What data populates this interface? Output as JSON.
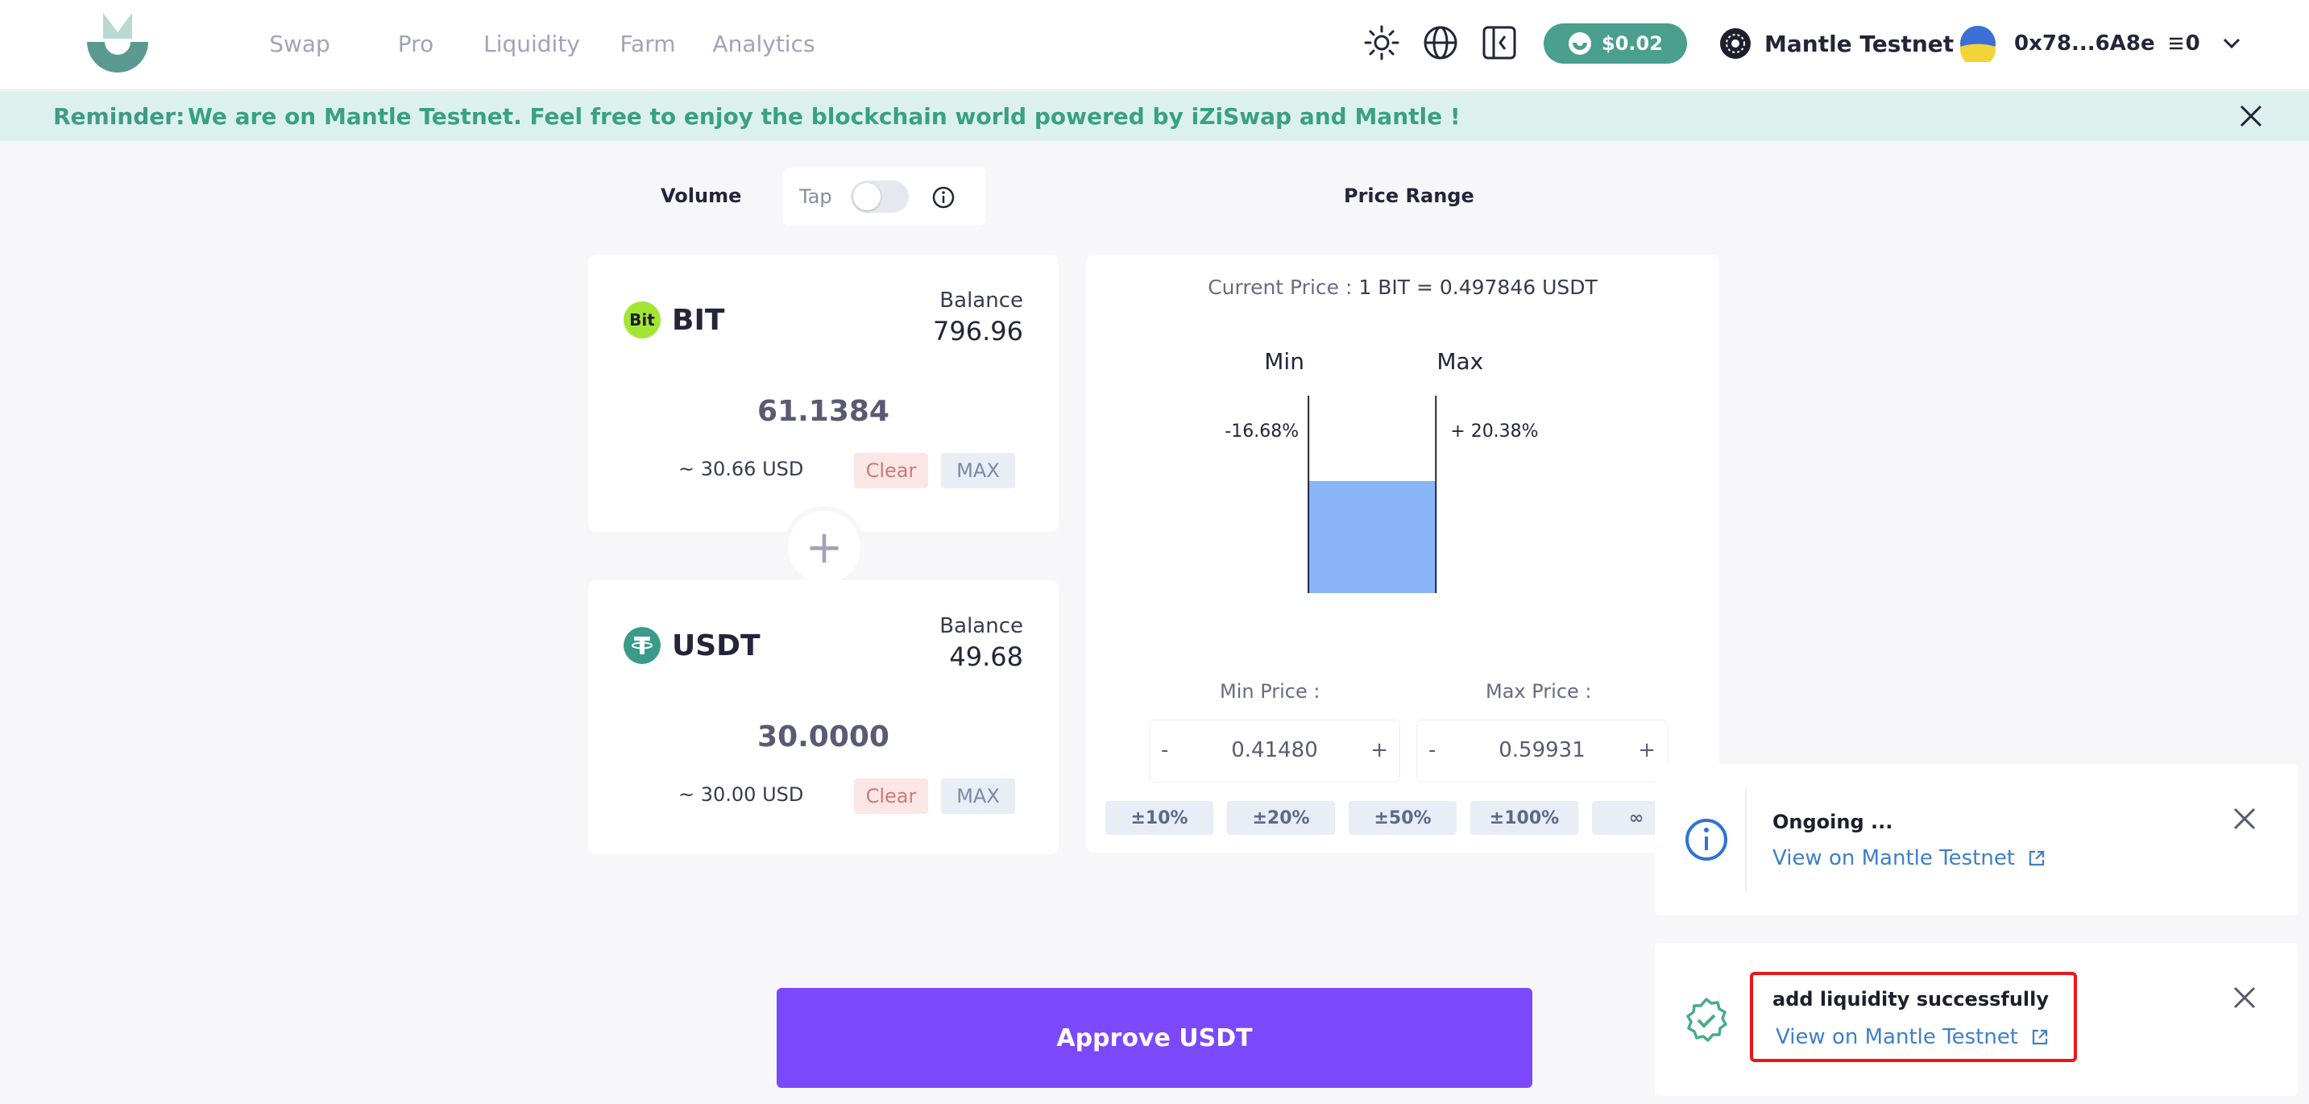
{
  "header": {
    "nav": [
      "Swap",
      "Pro",
      "Liquidity",
      "Farm",
      "Analytics"
    ],
    "balance": "$0.02",
    "network": "Mantle Testnet",
    "account": "0x78...6A8e",
    "pending_count": "0"
  },
  "reminder": {
    "label": "Reminder:",
    "message": "We are on Mantle Testnet. Feel free to enjoy the blockchain world powered by iZiSwap and Mantle !"
  },
  "volume": {
    "label": "Volume",
    "tap_label": "Tap",
    "tap_enabled": false
  },
  "token_a": {
    "symbol": "BIT",
    "icon_text": "Bit",
    "balance_label": "Balance",
    "balance": "796.96",
    "amount": "61.1384",
    "usd": "~ 30.66 USD",
    "clear": "Clear",
    "max": "MAX"
  },
  "token_b": {
    "symbol": "USDT",
    "balance_label": "Balance",
    "balance": "49.68",
    "amount": "30.0000",
    "usd": "~ 30.00 USD",
    "clear": "Clear",
    "max": "MAX"
  },
  "price_range": {
    "label": "Price Range",
    "current_label": "Current Price :",
    "current_value": "1 BIT = 0.497846 USDT",
    "min_label": "Min",
    "max_label": "Max",
    "min_pct": "-16.68%",
    "max_pct": "+ 20.38%",
    "min_price_label": "Min Price :",
    "max_price_label": "Max Price :",
    "min_price": "0.41480",
    "max_price": "0.59931",
    "minus": "-",
    "plus": "+",
    "presets": [
      "±10%",
      "±20%",
      "±50%",
      "±100%",
      "∞"
    ]
  },
  "chart_data": {
    "type": "area",
    "x_ticks": [
      "0.30",
      "0.40",
      "0.50",
      "0.60",
      "0.70",
      "0.80"
    ],
    "x_range": [
      0.2,
      0.9
    ],
    "range_min": 0.4148,
    "range_max": 0.59931,
    "fill_color": "#8ab4f8"
  },
  "approve_label": "Approve USDT",
  "toasts": [
    {
      "title": "Ongoing ...",
      "link": "View on Mantle Testnet",
      "icon": "info-icon"
    },
    {
      "title": "add liquidity successfully",
      "link": "View on Mantle Testnet",
      "icon": "success-check-icon"
    }
  ]
}
